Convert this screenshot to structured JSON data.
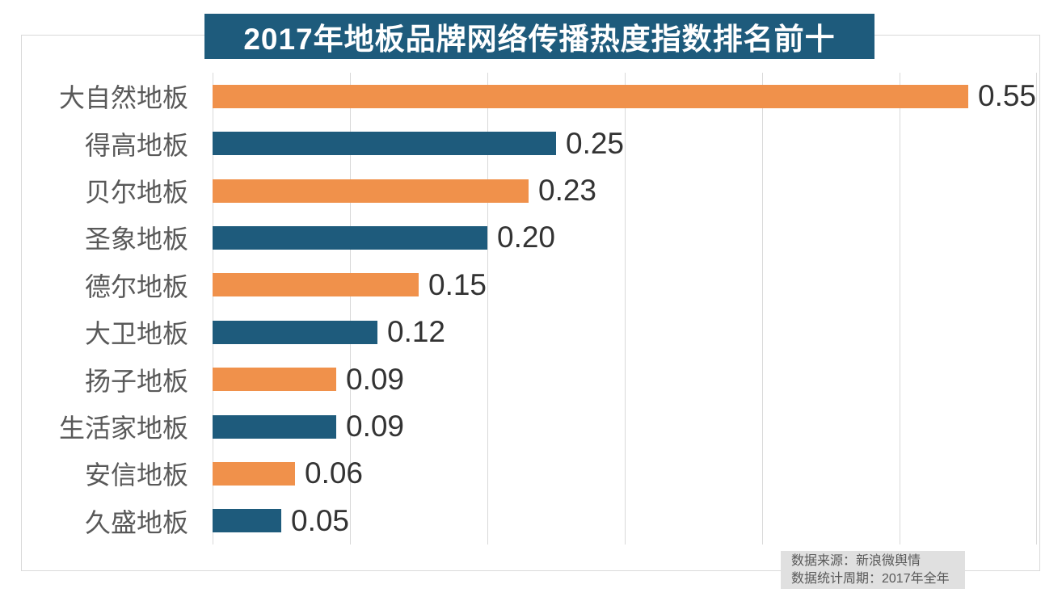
{
  "title": "2017年地板品牌网络传播热度指数排名前十",
  "source_note": {
    "line1": "数据来源：新浪微舆情",
    "line2": "数据统计周期：2017年全年"
  },
  "colors": {
    "banner_bg": "#1e5b7c",
    "banner_text": "#ffffff",
    "bar_orange": "#f0914b",
    "bar_teal": "#1e5b7c",
    "gridline": "#d9d9d9",
    "category_label": "#595959",
    "value_label": "#333333",
    "source_bg": "#e0e0e0"
  },
  "chart_data": {
    "type": "bar",
    "orientation": "horizontal",
    "title": "2017年地板品牌网络传播热度指数排名前十",
    "categories": [
      "大自然地板",
      "得高地板",
      "贝尔地板",
      "圣象地板",
      "德尔地板",
      "大卫地板",
      "扬子地板",
      "生活家地板",
      "安信地板",
      "久盛地板"
    ],
    "values": [
      0.55,
      0.25,
      0.23,
      0.2,
      0.15,
      0.12,
      0.09,
      0.09,
      0.06,
      0.05
    ],
    "value_labels": [
      "0.55",
      "0.25",
      "0.23",
      "0.20",
      "0.15",
      "0.12",
      "0.09",
      "0.09",
      "0.06",
      "0.05"
    ],
    "xlim": [
      0,
      0.6
    ],
    "gridline_interval": 0.1,
    "grid": true,
    "legend": false,
    "bar_color_pattern": [
      "#f0914b",
      "#1e5b7c"
    ],
    "data_source": "新浪微舆情",
    "data_period": "2017年全年"
  }
}
